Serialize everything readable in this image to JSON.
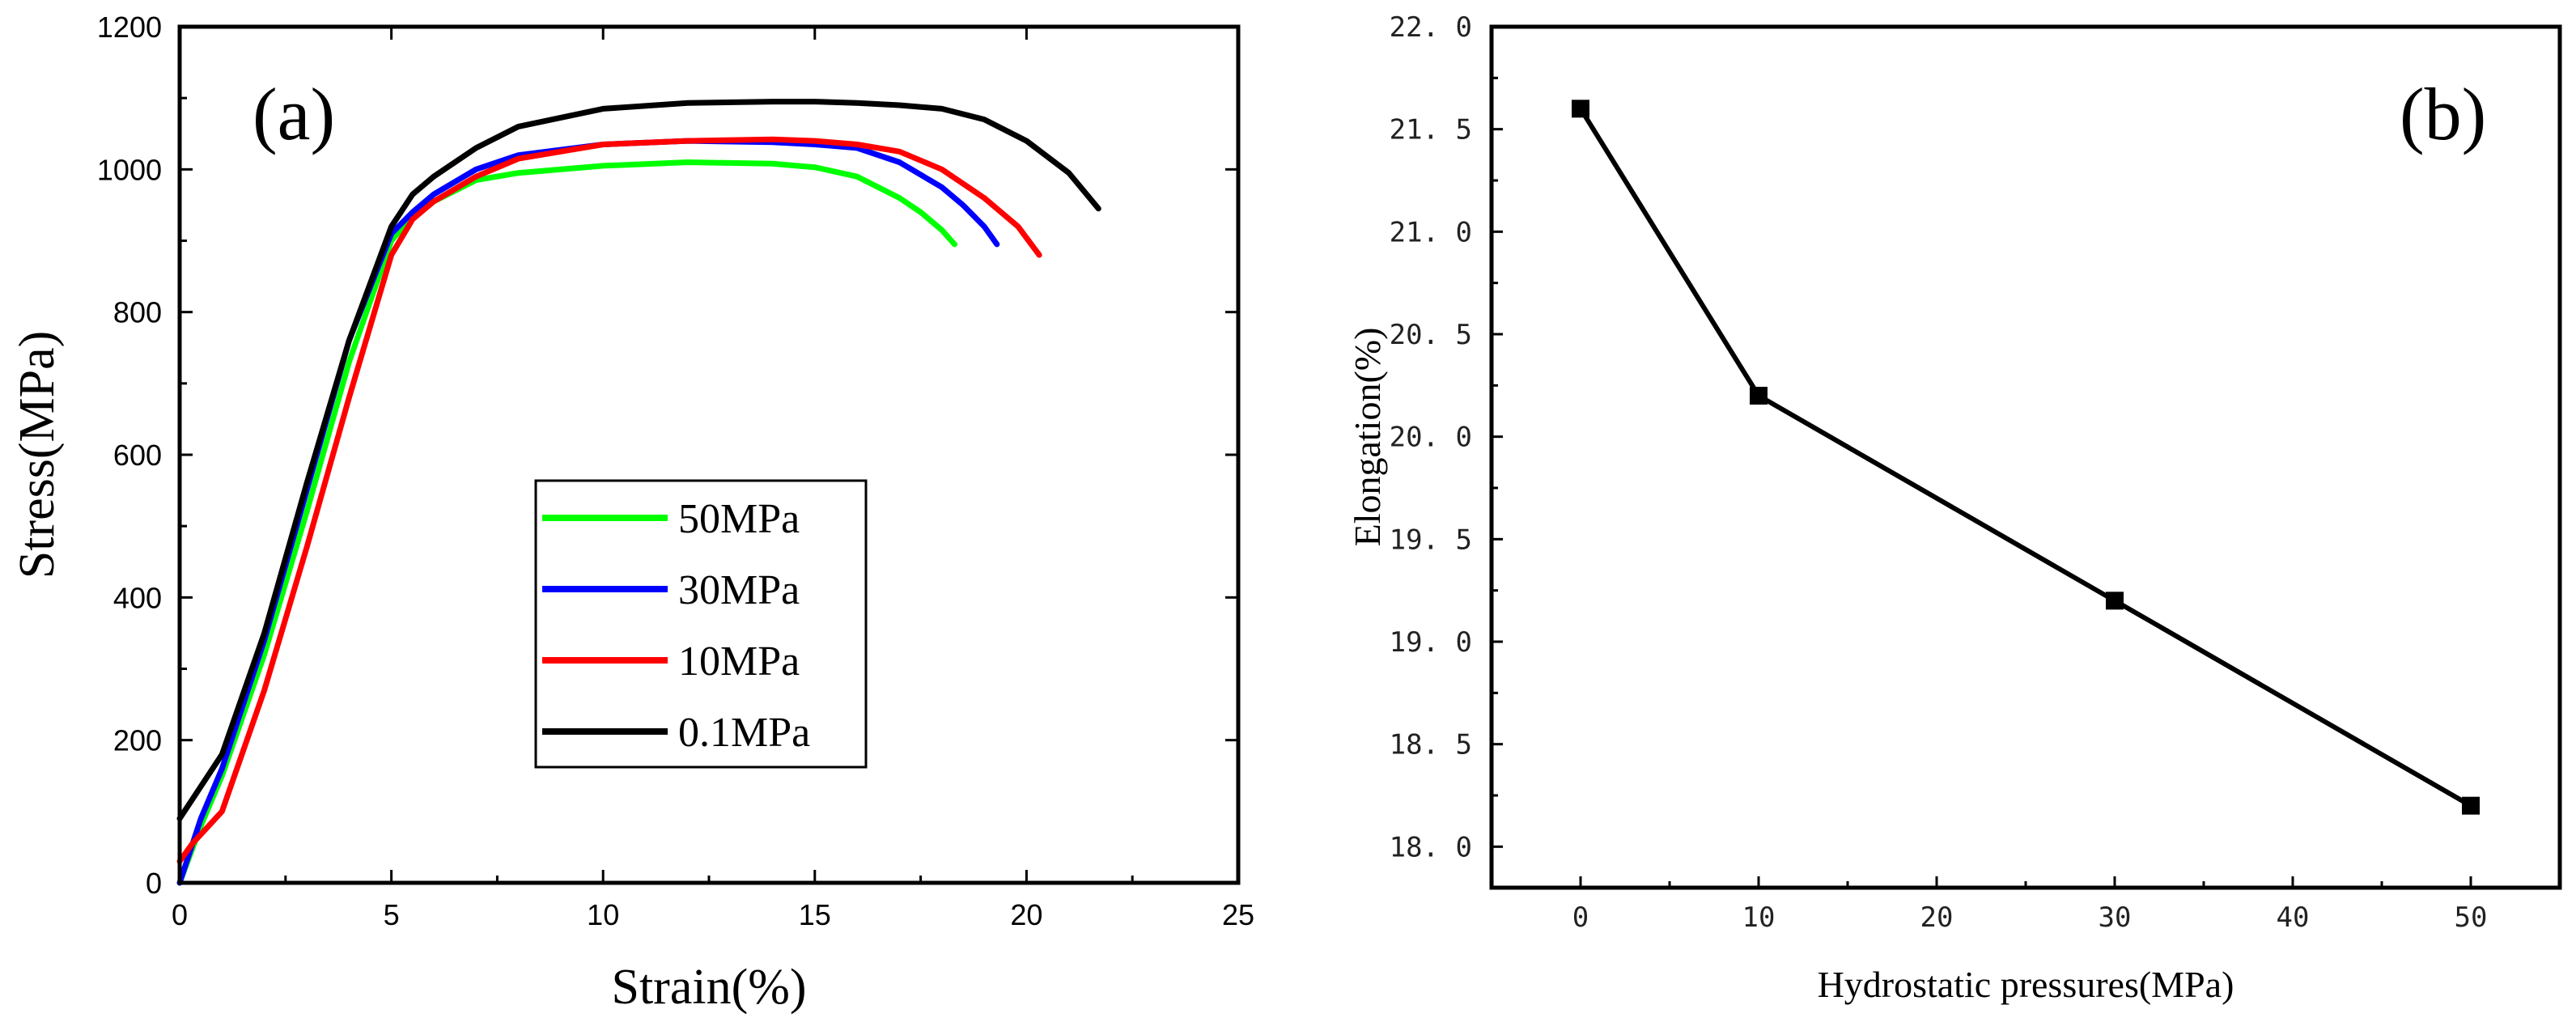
{
  "chart_data": [
    {
      "type": "line",
      "panel_label": "(a)",
      "xlabel": "Strain(%)",
      "ylabel": "Stress(MPa)",
      "xlim": [
        0,
        25
      ],
      "ylim": [
        0,
        1200
      ],
      "xticks": [
        0,
        5,
        10,
        15,
        20,
        25
      ],
      "yticks": [
        0,
        200,
        400,
        600,
        800,
        1000,
        1200
      ],
      "grid": false,
      "legend_position": "center",
      "series": [
        {
          "name": "50MPa",
          "color": "#00ff00",
          "x": [
            0,
            0.5,
            1,
            2,
            3,
            4,
            5,
            5.5,
            6,
            7,
            8,
            10,
            12,
            14,
            15,
            16,
            17,
            17.5,
            18,
            18.3
          ],
          "y": [
            0,
            80,
            150,
            320,
            520,
            730,
            900,
            935,
            955,
            985,
            995,
            1005,
            1010,
            1008,
            1003,
            990,
            960,
            940,
            915,
            895
          ]
        },
        {
          "name": "30MPa",
          "color": "#0000ff",
          "x": [
            0,
            0.5,
            1,
            2,
            3,
            4,
            5,
            5.5,
            6,
            7,
            8,
            10,
            12,
            14,
            15,
            16,
            17,
            18,
            18.5,
            19,
            19.3
          ],
          "y": [
            0,
            90,
            160,
            340,
            550,
            760,
            910,
            940,
            965,
            1000,
            1020,
            1035,
            1040,
            1038,
            1035,
            1030,
            1010,
            975,
            950,
            920,
            895
          ]
        },
        {
          "name": "10MPa",
          "color": "#ff0000",
          "x": [
            0,
            0.3,
            1,
            2,
            3,
            4,
            5,
            5.5,
            6,
            7,
            8,
            10,
            12,
            14,
            15,
            16,
            17,
            18,
            19,
            19.8,
            20.3
          ],
          "y": [
            30,
            55,
            100,
            270,
            470,
            680,
            880,
            930,
            955,
            990,
            1015,
            1035,
            1040,
            1042,
            1040,
            1035,
            1025,
            1000,
            960,
            920,
            880
          ]
        },
        {
          "name": "0.1MPa",
          "color": "#000000",
          "x": [
            0,
            1,
            2,
            3,
            4,
            5,
            5.5,
            6,
            7,
            8,
            10,
            12,
            14,
            15,
            16,
            17,
            18,
            19,
            20,
            21,
            21.7
          ],
          "y": [
            90,
            180,
            350,
            560,
            760,
            920,
            965,
            990,
            1030,
            1060,
            1085,
            1093,
            1095,
            1095,
            1093,
            1090,
            1085,
            1070,
            1040,
            995,
            945
          ]
        }
      ]
    },
    {
      "type": "line",
      "panel_label": "(b)",
      "xlabel": "Hydrostatic pressures(MPa)",
      "ylabel": "Elongation(%)",
      "xlim": [
        -5,
        55
      ],
      "ylim": [
        17.8,
        22.0
      ],
      "xticks": [
        0,
        10,
        20,
        30,
        40,
        50
      ],
      "yticks": [
        "18.0",
        "18.5",
        "19.0",
        "19.5",
        "20.0",
        "20.5",
        "21.0",
        "21.5",
        "22.0"
      ],
      "grid": false,
      "series": [
        {
          "name": "Elongation",
          "color": "#000000",
          "marker": "square",
          "x": [
            0,
            10,
            30,
            50
          ],
          "y": [
            21.6,
            20.2,
            19.2,
            18.2
          ]
        }
      ]
    }
  ]
}
